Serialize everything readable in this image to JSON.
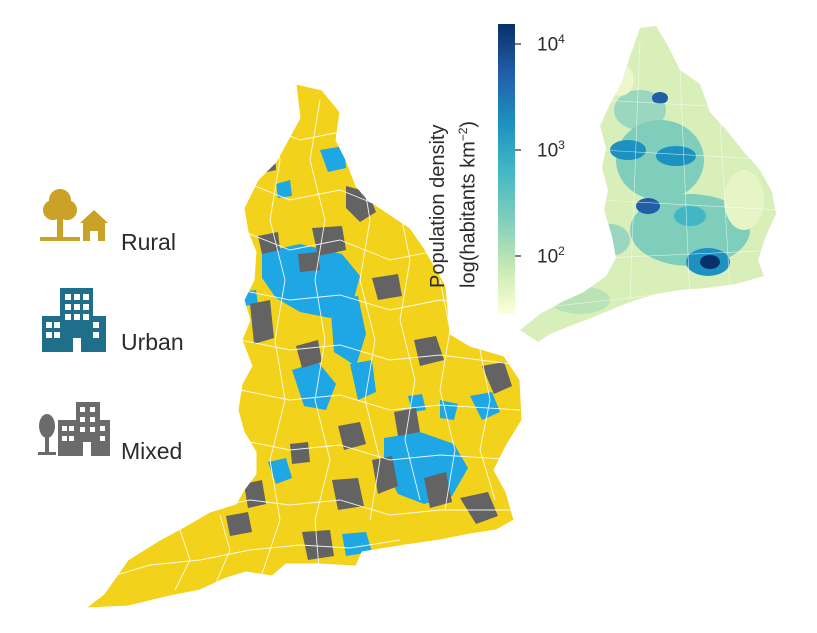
{
  "legend": {
    "items": [
      {
        "label": "Rural",
        "color": "#c9a227",
        "icon": "tree-house-icon"
      },
      {
        "label": "Urban",
        "color": "#1f6f8b",
        "icon": "apartment-building-icon"
      },
      {
        "label": "Mixed",
        "color": "#6b6b6b",
        "icon": "tree-building-icon"
      }
    ]
  },
  "main_map": {
    "region": "England",
    "colors": {
      "rural": "#f2d21b",
      "urban": "#1ea7e4",
      "mixed": "#636363",
      "border": "#ffffff"
    }
  },
  "inset_map": {
    "colorbar": {
      "title_line1": "Population density",
      "title_line2": "log(habitants km",
      "title_exp": "−2",
      "title_close": ")",
      "scale": "log",
      "ticks": [
        {
          "base": "10",
          "exp": "4"
        },
        {
          "base": "10",
          "exp": "3"
        },
        {
          "base": "10",
          "exp": "2"
        }
      ],
      "colors": [
        "#08306b",
        "#225ea8",
        "#1d91c0",
        "#41b6c4",
        "#7fcdbb",
        "#c7e9b4",
        "#ffffd9"
      ]
    }
  }
}
